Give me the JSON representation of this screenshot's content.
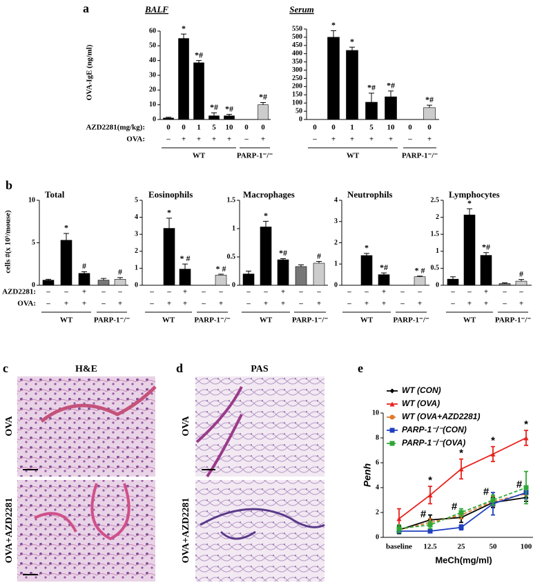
{
  "panel_letters": [
    "a",
    "b",
    "c",
    "d",
    "e"
  ],
  "histology": [
    {
      "title": "H&E",
      "rows": [
        "OVA",
        "OVA+AZD2281"
      ]
    },
    {
      "title": "PAS",
      "rows": [
        "OVA",
        "OVA+AZD2281"
      ]
    }
  ],
  "chart_data": [
    {
      "type": "bar",
      "title": "BALF",
      "ylabel": "OVA-IgE (ng/ml)",
      "values": [
        1,
        55,
        38.5,
        2.5,
        2.5,
        0,
        10
      ],
      "errors": [
        0.5,
        3,
        1.5,
        2,
        1,
        null,
        1.5
      ],
      "annotations": [
        null,
        "*",
        "*#",
        "*#",
        "*#",
        null,
        "*#"
      ],
      "colors": [
        "#000",
        "#000",
        "#000",
        "#000",
        "#000",
        "#000",
        "#ccc"
      ],
      "ylim": [
        0,
        60
      ],
      "yticks": [
        0,
        10,
        20,
        30,
        40,
        50,
        60
      ],
      "rows": [
        {
          "label": "AZD2281(mg/kg):",
          "values": [
            "0",
            "0",
            "1",
            "5",
            "10",
            "0",
            "0"
          ]
        },
        {
          "label": "OVA:",
          "values": [
            "–",
            "+",
            "+",
            "+",
            "+",
            "–",
            "+"
          ]
        }
      ],
      "groups": [
        "WT",
        "PARP-1⁻/⁻"
      ]
    },
    {
      "type": "bar",
      "title": "Serum",
      "values": [
        0,
        500,
        420,
        105,
        138,
        0,
        72
      ],
      "errors": [
        null,
        40,
        20,
        55,
        35,
        null,
        15
      ],
      "annotations": [
        null,
        "*",
        "*",
        "*#",
        "*#",
        null,
        "*#"
      ],
      "colors": [
        "#000",
        "#000",
        "#000",
        "#000",
        "#000",
        "#000",
        "#ccc"
      ],
      "ylim": [
        0,
        550
      ],
      "yticks": [
        0,
        50,
        100,
        150,
        200,
        250,
        300,
        350,
        400,
        450,
        500,
        550
      ],
      "rows": [
        {
          "values": [
            "0",
            "0",
            "1",
            "5",
            "10",
            "0",
            "0"
          ]
        },
        {
          "values": [
            "–",
            "+",
            "+",
            "+",
            "+",
            "–",
            "+"
          ]
        }
      ],
      "groups": [
        "WT",
        "PARP-1⁻/⁻"
      ]
    },
    {
      "type": "bar",
      "title": "Total",
      "ylabel": "cells #(x 10⁵/mouse)",
      "values": [
        0.6,
        5.3,
        1.4,
        0.6,
        0.7
      ],
      "errors": [
        0.1,
        0.8,
        0.2,
        0.2,
        0.2
      ],
      "annotations": [
        null,
        "*",
        "#",
        null,
        "#"
      ],
      "colors": [
        "#000",
        "#000",
        "#000",
        "#777",
        "#ccc"
      ],
      "ylim": [
        0,
        10
      ],
      "yticks": [
        0,
        5,
        10
      ],
      "rows": [
        {
          "label": "AZD2281:",
          "values": [
            "–",
            "–",
            "+",
            "–",
            "–"
          ]
        },
        {
          "label": "OVA:",
          "values": [
            "–",
            "+",
            "+",
            "–",
            "+"
          ]
        }
      ],
      "groups": [
        "WT",
        "PARP-1⁻/⁻"
      ]
    },
    {
      "type": "bar",
      "title": "Eosinophils",
      "values": [
        0,
        3.35,
        0.95,
        0,
        0.6
      ],
      "errors": [
        null,
        0.6,
        0.3,
        null,
        0.05
      ],
      "annotations": [
        null,
        "*",
        "* #",
        null,
        "* #"
      ],
      "colors": [
        "#000",
        "#000",
        "#000",
        "#777",
        "#ccc"
      ],
      "ylim": [
        0,
        5
      ],
      "yticks": [
        0,
        1,
        2,
        3,
        4,
        5
      ],
      "rows": [
        {
          "values": [
            "–",
            "–",
            "+",
            "–",
            "–"
          ]
        },
        {
          "values": [
            "–",
            "+",
            "+",
            "–",
            "+"
          ]
        }
      ],
      "groups": [
        "WT",
        "PARP-1⁻/⁻"
      ]
    },
    {
      "type": "bar",
      "title": "Macrophages",
      "values": [
        0.2,
        1.03,
        0.45,
        0.33,
        0.39
      ],
      "errors": [
        0.05,
        0.1,
        0.02,
        0.03,
        0.03
      ],
      "annotations": [
        null,
        "*",
        "*#",
        null,
        "#"
      ],
      "colors": [
        "#000",
        "#000",
        "#000",
        "#777",
        "#ccc"
      ],
      "ylim": [
        0,
        1.5
      ],
      "yticks": [
        0,
        0.5,
        1,
        1.5
      ],
      "rows": [
        {
          "values": [
            "–",
            "–",
            "+",
            "–",
            "–"
          ]
        },
        {
          "values": [
            "–",
            "+",
            "+",
            "–",
            "+"
          ]
        }
      ],
      "groups": [
        "WT",
        "PARP-1⁻/⁻"
      ]
    },
    {
      "type": "bar",
      "title": "Neutrophils",
      "values": [
        0,
        1.4,
        0.5,
        0,
        0.4
      ],
      "errors": [
        null,
        0.1,
        0.08,
        null,
        0.03
      ],
      "annotations": [
        null,
        "*",
        "*#",
        null,
        "* #"
      ],
      "colors": [
        "#000",
        "#000",
        "#000",
        "#777",
        "#ccc"
      ],
      "ylim": [
        0,
        4
      ],
      "yticks": [
        0,
        1,
        2,
        3,
        4
      ],
      "rows": [
        {
          "values": [
            "–",
            "–",
            "+",
            "–",
            "–"
          ]
        },
        {
          "values": [
            "–",
            "+",
            "+",
            "–",
            "+"
          ]
        }
      ],
      "groups": [
        "WT",
        "PARP-1⁻/⁻"
      ]
    },
    {
      "type": "bar",
      "title": "Lymphocytes",
      "values": [
        0.18,
        2.07,
        0.88,
        0.05,
        0.12
      ],
      "errors": [
        0.07,
        0.18,
        0.08,
        0.02,
        0.05
      ],
      "annotations": [
        null,
        "*",
        "*#",
        null,
        "#"
      ],
      "colors": [
        "#000",
        "#000",
        "#000",
        "#777",
        "#ccc"
      ],
      "ylim": [
        0,
        2.5
      ],
      "yticks": [
        0,
        0.5,
        1,
        1.5,
        2,
        2.5
      ],
      "rows": [
        {
          "values": [
            "–",
            "–",
            "+",
            "–",
            "–"
          ]
        },
        {
          "values": [
            "–",
            "+",
            "+",
            "–",
            "+"
          ]
        }
      ],
      "groups": [
        "WT",
        "PARP-1⁻/⁻"
      ]
    },
    {
      "type": "line",
      "xlabel": "MeCh(mg/ml)",
      "ylabel": "Penh",
      "categories": [
        "baseline",
        "12.5",
        "25",
        "50",
        "100"
      ],
      "ylim": [
        0,
        10
      ],
      "yticks": [
        0,
        2,
        4,
        6,
        8,
        10
      ],
      "series": [
        {
          "name": "WT (CON)",
          "color": "#000",
          "marker": "diamond",
          "linestyle": "solid",
          "values": [
            0.6,
            1.4,
            1.6,
            2.8,
            3.2
          ],
          "errors": [
            0.3,
            0.4,
            0.4,
            0.4,
            0.3
          ]
        },
        {
          "name": "WT (OVA)",
          "color": "#e8231f",
          "marker": "triangle",
          "linestyle": "solid",
          "values": [
            1.5,
            3.4,
            5.5,
            6.7,
            8.0
          ],
          "errors": [
            0.8,
            0.7,
            0.8,
            0.6,
            0.6
          ],
          "annotations": [
            null,
            "*",
            "*",
            "*",
            "*"
          ]
        },
        {
          "name": "WT (OVA+AZD2281)",
          "color": "#e07a2a",
          "marker": "circle",
          "linestyle": "dashed",
          "values": [
            0.6,
            1.2,
            1.8,
            2.9,
            3.5
          ],
          "errors": [
            0.2,
            0.3,
            0.3,
            0.4,
            0.4
          ],
          "annotations": [
            null,
            "#",
            "#",
            "#",
            "#"
          ]
        },
        {
          "name": "PARP-1⁻/⁻(CON)",
          "color": "#1f3fbf",
          "marker": "square",
          "linestyle": "solid",
          "values": [
            0.5,
            0.5,
            0.8,
            2.7,
            3.6
          ],
          "errors": [
            0.1,
            0.1,
            0.2,
            0.9,
            0.5
          ]
        },
        {
          "name": "PARP-1⁻/⁻(OVA)",
          "color": "#2ea836",
          "marker": "square",
          "linestyle": "dashed",
          "values": [
            0.7,
            1.0,
            2.0,
            3.0,
            4.0
          ],
          "errors": [
            0.3,
            0.3,
            0.3,
            0.4,
            1.3
          ]
        }
      ]
    }
  ]
}
